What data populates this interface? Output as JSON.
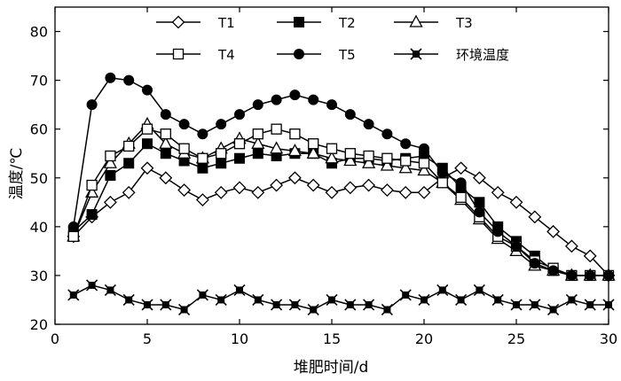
{
  "chart_data": {
    "type": "line",
    "title": "",
    "xlabel": "堆肥时间/d",
    "ylabel": "温度/℃",
    "xlim": [
      0,
      30
    ],
    "ylim": [
      20,
      85
    ],
    "xticks": [
      0,
      5,
      10,
      15,
      20,
      25,
      30
    ],
    "yticks": [
      20,
      30,
      40,
      50,
      60,
      70,
      80
    ],
    "grid": false,
    "legend_position": "top",
    "x": [
      1,
      2,
      3,
      4,
      5,
      6,
      7,
      8,
      9,
      10,
      11,
      12,
      13,
      14,
      15,
      16,
      17,
      18,
      19,
      20,
      21,
      22,
      23,
      24,
      25,
      26,
      27,
      28,
      29,
      30
    ],
    "series": [
      {
        "name": "T1",
        "marker": "diamond-open",
        "values": [
          38,
          42,
          45,
          47,
          52,
          50,
          47.5,
          45.5,
          47,
          48,
          47,
          48.5,
          50,
          48.5,
          47,
          48,
          48.5,
          47.5,
          47,
          47,
          50,
          52,
          50,
          47,
          45,
          42,
          39,
          36,
          34,
          30
        ]
      },
      {
        "name": "T2",
        "marker": "square-filled",
        "values": [
          39,
          42.5,
          50.5,
          53,
          57,
          55,
          53.5,
          52,
          53,
          54,
          55,
          54.5,
          55,
          55,
          53,
          54,
          54,
          53.5,
          54,
          54.5,
          52,
          48,
          45,
          40,
          37,
          34,
          31,
          30,
          30,
          30
        ]
      },
      {
        "name": "T3",
        "marker": "triangle-open",
        "values": [
          38,
          47,
          53,
          57,
          61,
          57,
          55,
          54,
          56,
          58,
          57,
          56,
          55.5,
          55,
          54,
          53.5,
          53,
          52.5,
          52,
          51.5,
          49,
          45.5,
          41.5,
          37.5,
          35,
          32,
          31,
          30,
          30,
          30
        ]
      },
      {
        "name": "T4",
        "marker": "square-open",
        "values": [
          38,
          48.5,
          54.5,
          56.5,
          60,
          59,
          56,
          54,
          55,
          57,
          59,
          60,
          59,
          57,
          56,
          55,
          54.5,
          54,
          53.5,
          53,
          49,
          46,
          42,
          38,
          36,
          33,
          31.5,
          30,
          30,
          30
        ]
      },
      {
        "name": "T5",
        "marker": "circle-filled",
        "values": [
          40,
          65,
          70.5,
          70,
          68,
          63,
          61,
          59,
          61,
          63,
          65,
          66,
          67,
          66,
          65,
          63,
          61,
          59,
          57,
          56,
          51,
          49,
          43,
          39,
          36,
          32.5,
          31,
          30,
          30,
          30
        ]
      },
      {
        "name": "环境温度",
        "marker": "star-filled",
        "values": [
          26,
          28,
          27,
          25,
          24,
          24,
          23,
          26,
          25,
          27,
          25,
          24,
          24,
          23,
          25,
          24,
          24,
          23,
          26,
          25,
          27,
          25,
          27,
          25,
          24,
          24,
          23,
          25,
          24,
          24
        ]
      }
    ]
  }
}
